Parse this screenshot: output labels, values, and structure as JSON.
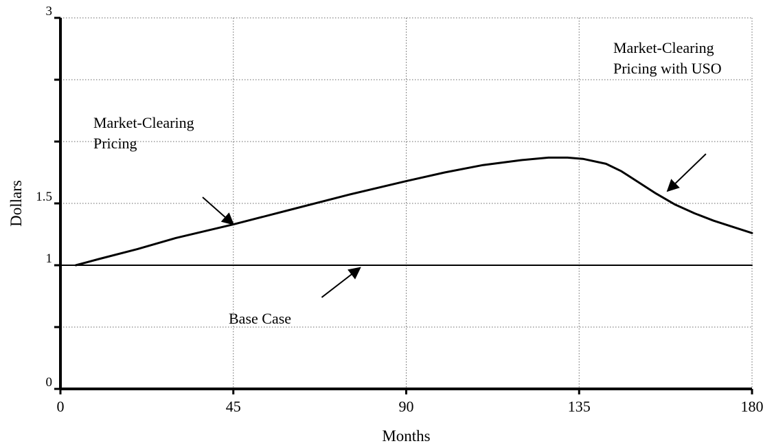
{
  "chart_data": {
    "type": "line",
    "xlabel": "Months",
    "ylabel": "Dollars",
    "xlim": [
      0,
      180
    ],
    "ylim": [
      0,
      3
    ],
    "x_ticks": [
      0,
      45,
      90,
      135,
      180
    ],
    "x_tick_labels": [
      "0",
      "45",
      "90",
      "135",
      "180"
    ],
    "y_ticks": [
      0,
      0.5,
      1,
      1.5,
      2,
      2.5,
      3
    ],
    "y_tick_labels": [
      "0",
      "",
      "1",
      "1.5",
      "",
      "",
      "3"
    ],
    "grid": true,
    "series": [
      {
        "name": "Market-Clearing Pricing",
        "color": "#000000",
        "x": [
          4,
          10,
          20,
          30,
          45,
          60,
          75,
          90,
          100,
          110,
          120,
          127,
          132,
          136,
          142,
          146,
          150,
          155,
          160,
          165,
          170,
          175,
          180
        ],
        "y": [
          1.0,
          1.05,
          1.13,
          1.22,
          1.33,
          1.45,
          1.57,
          1.68,
          1.75,
          1.81,
          1.85,
          1.87,
          1.87,
          1.86,
          1.82,
          1.76,
          1.68,
          1.58,
          1.49,
          1.42,
          1.36,
          1.31,
          1.26
        ]
      },
      {
        "name": "Base Case",
        "color": "#000000",
        "x": [
          0,
          180
        ],
        "y": [
          1.0,
          1.0
        ]
      }
    ],
    "annotations": [
      {
        "text": [
          "Market-Clearing",
          "Pricing"
        ],
        "arrow_to_x": 45,
        "arrow_to_y": 1.33,
        "arrow_from_x": 37,
        "arrow_from_y": 1.55
      },
      {
        "text": [
          "Market-Clearing",
          "Pricing with USO"
        ],
        "arrow_to_x": 158,
        "arrow_to_y": 1.6,
        "arrow_from_x": 168,
        "arrow_from_y": 1.9
      },
      {
        "text": [
          "Base Case"
        ],
        "arrow_to_x": 78,
        "arrow_to_y": 0.98,
        "arrow_from_x": 68,
        "arrow_from_y": 0.74
      }
    ]
  }
}
